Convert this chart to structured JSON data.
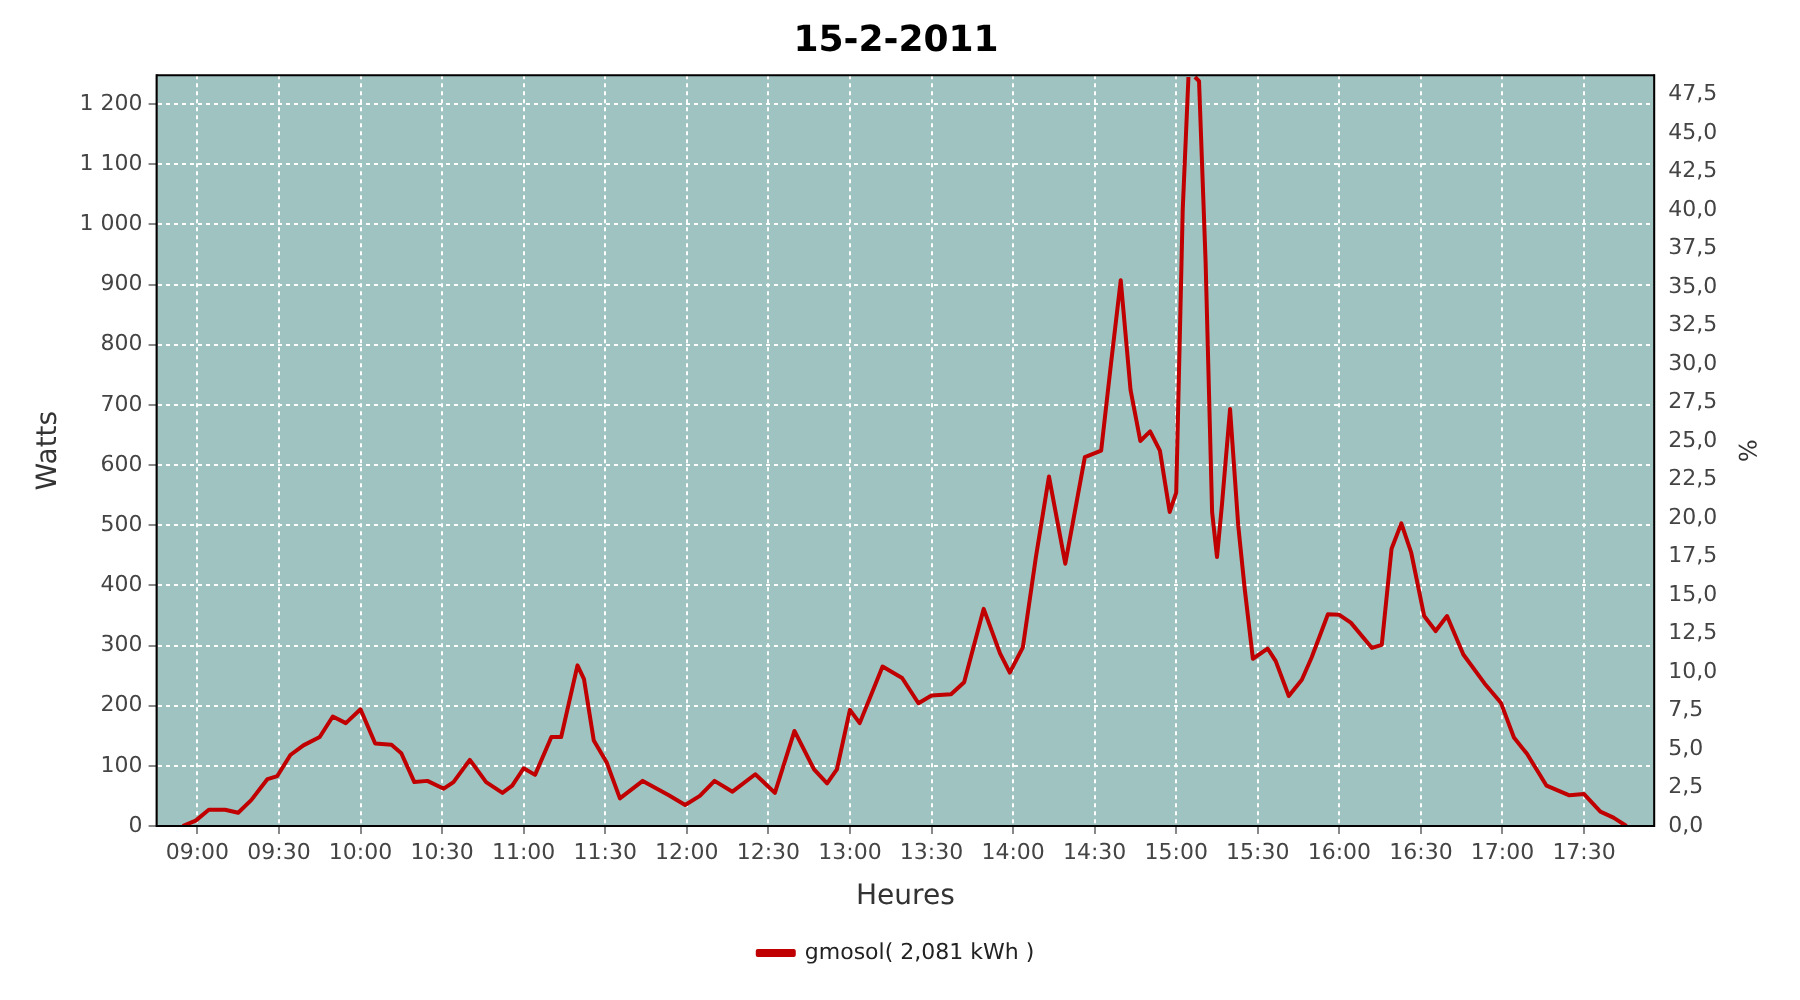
{
  "chart_data": {
    "type": "line",
    "title": "15-2-2011",
    "xlabel": "Heures",
    "ylabel": "Watts",
    "y2label": "%",
    "xlim": [
      8.75,
      17.93
    ],
    "xticks": [
      {
        "value": 9,
        "label": "09:00"
      },
      {
        "value": 9.5,
        "label": "09:30"
      },
      {
        "value": 10,
        "label": "10:00"
      },
      {
        "value": 10.5,
        "label": "10:30"
      },
      {
        "value": 11,
        "label": "11:00"
      },
      {
        "value": 11.5,
        "label": "11:30"
      },
      {
        "value": 12,
        "label": "12:00"
      },
      {
        "value": 12.5,
        "label": "12:30"
      },
      {
        "value": 13,
        "label": "13:00"
      },
      {
        "value": 13.5,
        "label": "13:30"
      },
      {
        "value": 14,
        "label": "14:00"
      },
      {
        "value": 14.5,
        "label": "14:30"
      },
      {
        "value": 15,
        "label": "15:00"
      },
      {
        "value": 15.5,
        "label": "15:30"
      },
      {
        "value": 16,
        "label": "16:00"
      },
      {
        "value": 16.5,
        "label": "16:30"
      },
      {
        "value": 17,
        "label": "17:00"
      },
      {
        "value": 17.5,
        "label": "17:30"
      }
    ],
    "ylim": [
      0,
      1248
    ],
    "yticks": [
      0,
      100,
      200,
      300,
      400,
      500,
      600,
      700,
      800,
      900,
      {
        "value": 1000,
        "label": "1 000"
      },
      {
        "value": 1100,
        "label": "1 100"
      },
      {
        "value": 1200,
        "label": "1 200"
      }
    ],
    "y2lim": [
      0,
      48.75
    ],
    "y2ticks": [
      {
        "value": 0,
        "label": "0,0"
      },
      {
        "value": 2.5,
        "label": "2,5"
      },
      {
        "value": 5,
        "label": "5,0"
      },
      {
        "value": 7.5,
        "label": "7,5"
      },
      {
        "value": 10,
        "label": "10,0"
      },
      {
        "value": 12.5,
        "label": "12,5"
      },
      {
        "value": 15,
        "label": "15,0"
      },
      {
        "value": 17.5,
        "label": "17,5"
      },
      {
        "value": 20,
        "label": "20,0"
      },
      {
        "value": 22.5,
        "label": "22,5"
      },
      {
        "value": 25,
        "label": "25,0"
      },
      {
        "value": 27.5,
        "label": "27,5"
      },
      {
        "value": 30,
        "label": "30,0"
      },
      {
        "value": 32.5,
        "label": "32,5"
      },
      {
        "value": 35,
        "label": "35,0"
      },
      {
        "value": 37.5,
        "label": "37,5"
      },
      {
        "value": 40,
        "label": "40,0"
      },
      {
        "value": 42.5,
        "label": "42,5"
      },
      {
        "value": 45,
        "label": "45,0"
      },
      {
        "value": 47.5,
        "label": "47,5"
      }
    ],
    "grid": true,
    "legend": "bottom",
    "marker": "none",
    "line_style": "solid",
    "series": [
      {
        "name": "gmosol( 2,081 kWh )",
        "color": "#c00000",
        "x": [
          8.91,
          8.99,
          9.07,
          9.17,
          9.25,
          9.33,
          9.43,
          9.49,
          9.57,
          9.65,
          9.75,
          9.83,
          9.91,
          10.0,
          10.09,
          10.19,
          10.25,
          10.33,
          10.41,
          10.51,
          10.57,
          10.67,
          10.77,
          10.87,
          10.93,
          11.0,
          11.07,
          11.17,
          11.23,
          11.33,
          11.37,
          11.43,
          11.51,
          11.59,
          11.73,
          11.89,
          11.99,
          12.08,
          12.17,
          12.28,
          12.42,
          12.54,
          12.66,
          12.78,
          12.86,
          12.92,
          13.0,
          13.06,
          13.2,
          13.32,
          13.42,
          13.5,
          13.62,
          13.7,
          13.82,
          13.92,
          13.98,
          14.06,
          14.14,
          14.22,
          14.32,
          14.44,
          14.54,
          14.6,
          14.66,
          14.72,
          14.78,
          14.84,
          14.9,
          14.96,
          15.0,
          15.04,
          15.075,
          15.095,
          15.115,
          15.14,
          15.18,
          15.22,
          15.25,
          15.28,
          15.33,
          15.38,
          15.42,
          15.47,
          15.56,
          15.61,
          15.69,
          15.77,
          15.83,
          15.93,
          16.0,
          16.07,
          16.2,
          16.26,
          16.32,
          16.38,
          16.44,
          16.52,
          16.59,
          16.66,
          16.76,
          16.89,
          16.99,
          17.07,
          17.15,
          17.27,
          17.41,
          17.5,
          17.6,
          17.68,
          17.76
        ],
        "values": [
          0,
          9,
          27,
          27,
          22,
          43,
          78,
          83,
          118,
          134,
          148,
          182,
          171,
          194,
          137,
          135,
          121,
          73,
          75,
          62,
          73,
          110,
          73,
          55,
          67,
          96,
          85,
          148,
          148,
          267,
          244,
          142,
          105,
          46,
          75,
          51,
          35,
          50,
          75,
          57,
          86,
          55,
          158,
          94,
          71,
          94,
          193,
          171,
          265,
          246,
          204,
          217,
          219,
          239,
          361,
          287,
          255,
          297,
          447,
          581,
          436,
          613,
          624,
          768,
          907,
          725,
          640,
          656,
          624,
          522,
          554,
          1025,
          1245,
          null,
          1245,
          1238,
          939,
          522,
          447,
          533,
          693,
          500,
          394,
          278,
          295,
          274,
          216,
          243,
          280,
          352,
          351,
          338,
          296,
          301,
          461,
          503,
          455,
          349,
          324,
          349,
          285,
          237,
          205,
          147,
          120,
          67,
          51,
          53,
          24,
          14,
          0
        ]
      }
    ]
  }
}
